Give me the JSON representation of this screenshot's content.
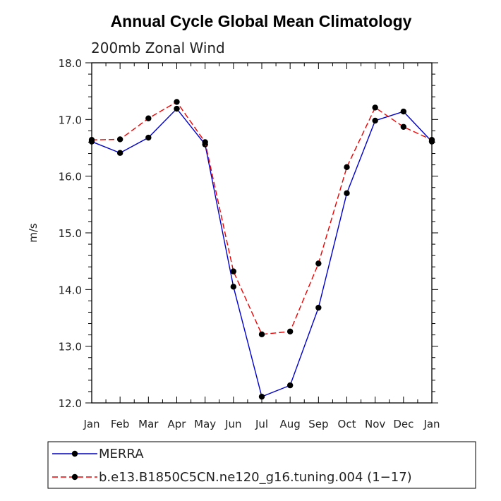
{
  "chart_data": {
    "type": "line",
    "title": "Annual Cycle Global Mean Climatology",
    "subtitle": "200mb Zonal Wind",
    "xlabel": "",
    "ylabel": "m/s",
    "categories": [
      "Jan",
      "Feb",
      "Mar",
      "Apr",
      "May",
      "Jun",
      "Jul",
      "Aug",
      "Sep",
      "Oct",
      "Nov",
      "Dec",
      "Jan"
    ],
    "ylim": [
      12.0,
      18.0
    ],
    "yticks": [
      "12.0",
      "13.0",
      "14.0",
      "15.0",
      "16.0",
      "17.0",
      "18.0"
    ],
    "legend_position": "bottom",
    "series": [
      {
        "name": "MERRA",
        "color": "#0000cc",
        "dash": "solid",
        "values": [
          16.61,
          16.41,
          16.68,
          17.19,
          16.56,
          14.05,
          12.11,
          12.31,
          13.68,
          15.7,
          16.98,
          17.14,
          16.61
        ]
      },
      {
        "name": "b.e13.B1850C5CN.ne120_g16.tuning.004 (1−17)",
        "color": "#ee0000",
        "dash": "dashed",
        "values": [
          16.64,
          16.65,
          17.02,
          17.31,
          16.6,
          14.32,
          13.21,
          13.26,
          14.46,
          16.16,
          17.21,
          16.87,
          16.64
        ]
      }
    ]
  }
}
